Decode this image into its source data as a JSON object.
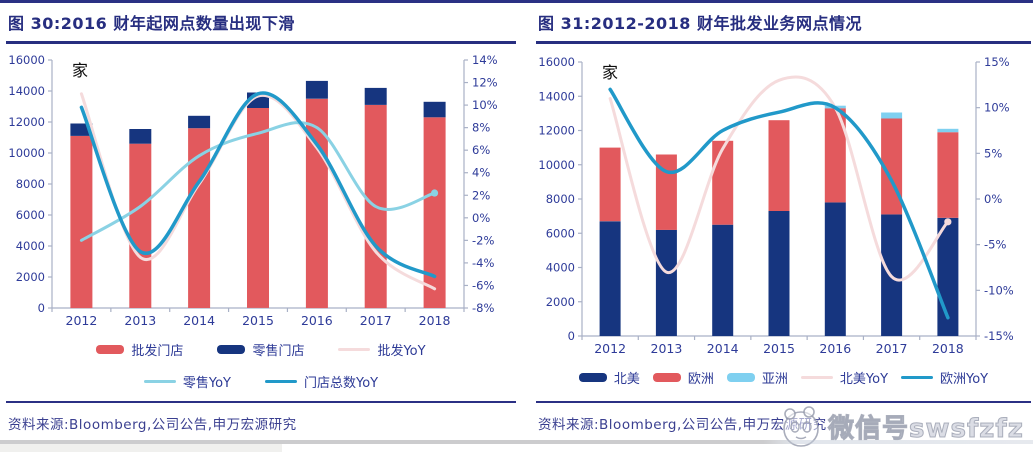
{
  "figures": [
    {
      "title": "图 30:2016 财年起网点数量出现下滑",
      "source": "资料来源:Bloomberg,公司公告,申万宏源研究"
    },
    {
      "title": "图 31:2012-2018 财年批发业务网点情况",
      "source": "资料来源:Bloomberg,公司公告,申万宏源研究"
    }
  ],
  "watermark": {
    "text": "微信号swsfzfz"
  },
  "colors": {
    "title_navy": "#272e80",
    "axis_text": "#2e3b99",
    "axis_line": "#a9b1c6",
    "bar_red": "#e2595d",
    "bar_navy": "#16357f",
    "bar_lightblue": "#7fd0f0",
    "line_pink": "#f5dbdc",
    "line_cyan": "#8ad2e4",
    "line_teal": "#2199c9"
  },
  "chart_data": [
    {
      "type": "bar",
      "subtype": "stacked-bars-with-yoy-lines",
      "unit_label": "家",
      "categories": [
        "2012",
        "2013",
        "2014",
        "2015",
        "2016",
        "2017",
        "2018"
      ],
      "left_axis": {
        "min": 0,
        "max": 16000,
        "step": 2000
      },
      "right_axis": {
        "min": -8,
        "max": 14,
        "step": 2,
        "suffix": "%"
      },
      "bar_series": [
        {
          "name": "批发门店",
          "color": "#e2595d",
          "values": [
            11100,
            10600,
            11600,
            12900,
            13500,
            13100,
            12300
          ]
        },
        {
          "name": "零售门店",
          "color": "#16357f",
          "values": [
            800,
            950,
            800,
            1000,
            1150,
            1100,
            1000
          ]
        }
      ],
      "line_series": [
        {
          "name": "批发YoY",
          "color": "#f5dbdc",
          "width": 3,
          "end_dot": false,
          "values": [
            11,
            -3.5,
            3,
            10.8,
            6.2,
            -3,
            -6.3
          ]
        },
        {
          "name": "零售YoY",
          "color": "#8ad2e4",
          "width": 3,
          "end_dot": true,
          "values": [
            -2,
            1,
            5.5,
            7.5,
            8,
            1,
            2.2
          ]
        },
        {
          "name": "门店总数YoY",
          "color": "#2199c9",
          "width": 3.5,
          "end_dot": false,
          "values": [
            9.8,
            -3,
            3.2,
            11,
            6.5,
            -2.5,
            -5.2
          ]
        }
      ],
      "legend_position": "bottom",
      "grid": false
    },
    {
      "type": "bar",
      "subtype": "stacked-bars-with-yoy-lines",
      "unit_label": "家",
      "categories": [
        "2012",
        "2013",
        "2014",
        "2015",
        "2016",
        "2017",
        "2018"
      ],
      "left_axis": {
        "min": 0,
        "max": 16000,
        "step": 2000
      },
      "right_axis": {
        "min": -15,
        "max": 15,
        "step": 5,
        "suffix": "%"
      },
      "bar_series": [
        {
          "name": "北美",
          "color": "#16357f",
          "values": [
            6700,
            6200,
            6500,
            7300,
            7800,
            7100,
            6900
          ]
        },
        {
          "name": "欧洲",
          "color": "#e2595d",
          "values": [
            4300,
            4400,
            4900,
            5300,
            5500,
            5600,
            5000
          ]
        },
        {
          "name": "亚洲",
          "color": "#7fd0f0",
          "values": [
            0,
            0,
            0,
            0,
            150,
            350,
            200
          ]
        }
      ],
      "line_series": [
        {
          "name": "北美YoY",
          "color": "#f5dbdc",
          "width": 3,
          "end_dot": true,
          "values": [
            11,
            -8,
            5.5,
            13,
            10,
            -8.5,
            -2.5
          ]
        },
        {
          "name": "欧洲YoY",
          "color": "#2199c9",
          "width": 3.5,
          "end_dot": false,
          "values": [
            12,
            3,
            7.5,
            9.5,
            10,
            2,
            -13
          ]
        }
      ],
      "legend_position": "bottom",
      "grid": false
    }
  ]
}
